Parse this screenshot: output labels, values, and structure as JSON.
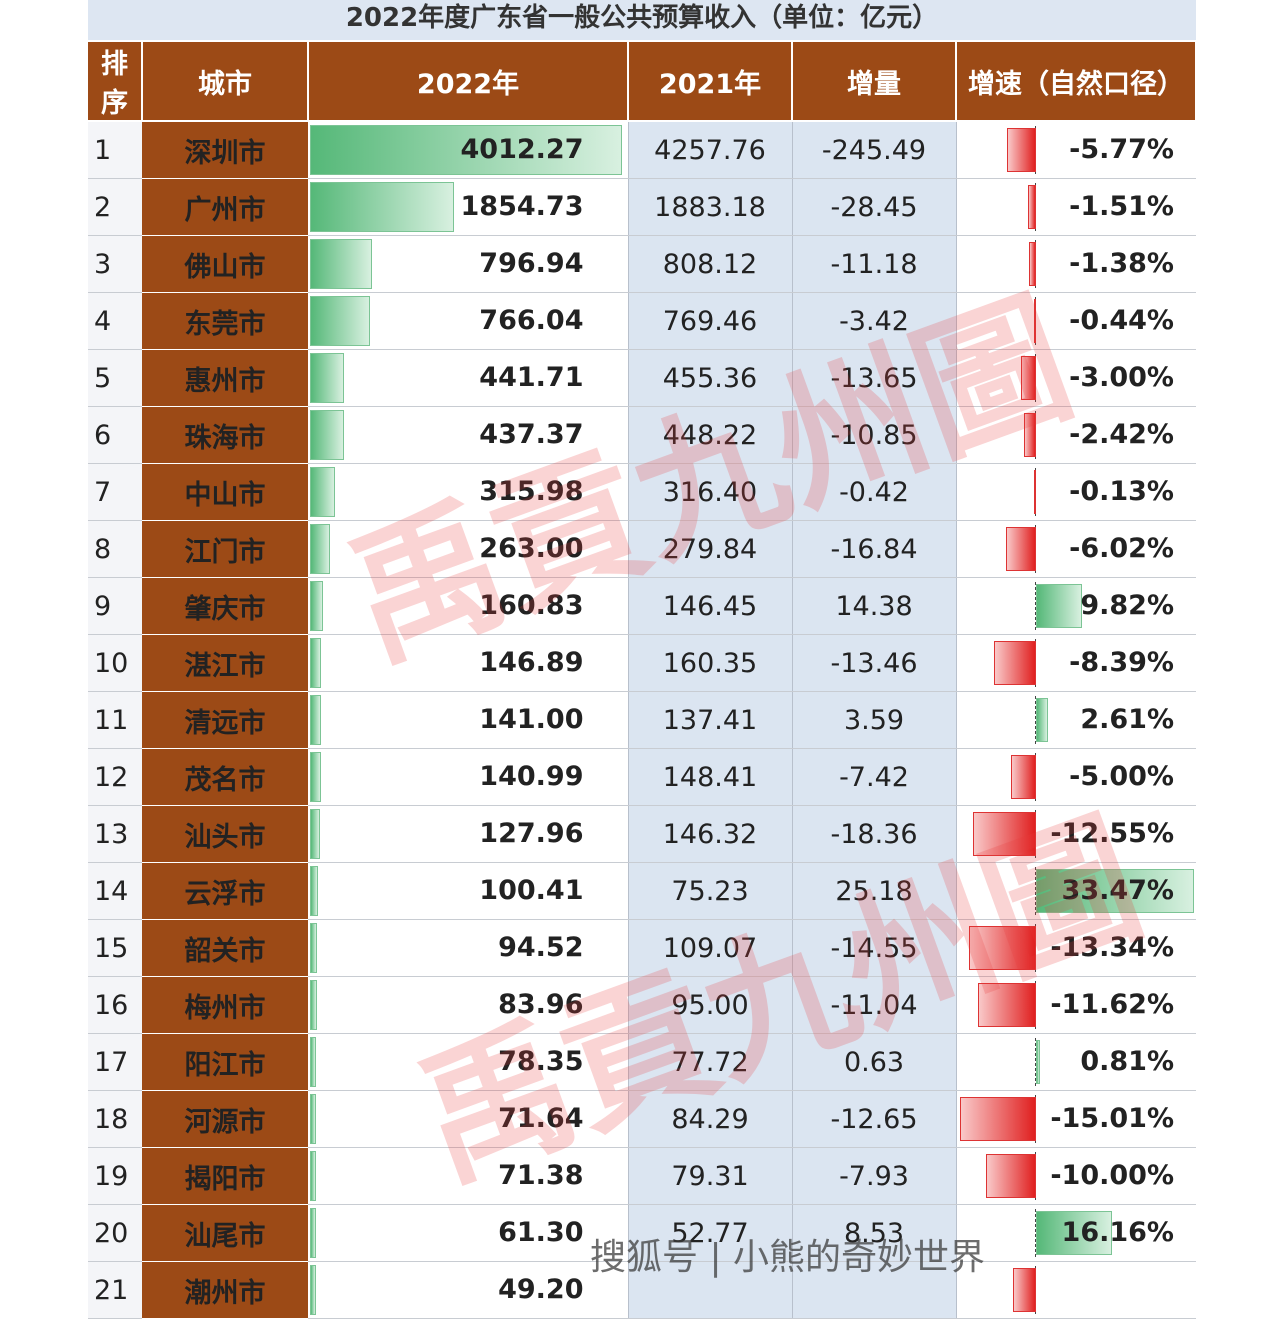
{
  "title": "2022年度广东省一般公共预算收入（单位：亿元）",
  "headers": [
    "排序",
    "城市",
    "2022年",
    "2021年",
    "增量",
    "增速（自然口径）"
  ],
  "watermark": "禹貢九州圖",
  "footer": "搜狐号 | 小熊的奇妙世界",
  "colors": {
    "header_bg": "#9c4a16",
    "bar_green": "#55b878",
    "bar_red": "#e02020",
    "light_blue": "#dbe5f1"
  },
  "chart_data": {
    "type": "table",
    "title": "2022年度广东省一般公共预算收入（单位：亿元）",
    "columns": [
      "排序",
      "城市",
      "2022年",
      "2021年",
      "增量",
      "增速（自然口径）"
    ],
    "rows": [
      {
        "rank": "1",
        "city": "深圳市",
        "v2022": "4012.27",
        "v2021": "4257.76",
        "inc": "-245.49",
        "rate": "-5.77%",
        "r": -5.77,
        "val": 4012.27
      },
      {
        "rank": "2",
        "city": "广州市",
        "v2022": "1854.73",
        "v2021": "1883.18",
        "inc": "-28.45",
        "rate": "-1.51%",
        "r": -1.51,
        "val": 1854.73
      },
      {
        "rank": "3",
        "city": "佛山市",
        "v2022": "796.94",
        "v2021": "808.12",
        "inc": "-11.18",
        "rate": "-1.38%",
        "r": -1.38,
        "val": 796.94
      },
      {
        "rank": "4",
        "city": "东莞市",
        "v2022": "766.04",
        "v2021": "769.46",
        "inc": "-3.42",
        "rate": "-0.44%",
        "r": -0.44,
        "val": 766.04
      },
      {
        "rank": "5",
        "city": "惠州市",
        "v2022": "441.71",
        "v2021": "455.36",
        "inc": "-13.65",
        "rate": "-3.00%",
        "r": -3.0,
        "val": 441.71
      },
      {
        "rank": "6",
        "city": "珠海市",
        "v2022": "437.37",
        "v2021": "448.22",
        "inc": "-10.85",
        "rate": "-2.42%",
        "r": -2.42,
        "val": 437.37
      },
      {
        "rank": "7",
        "city": "中山市",
        "v2022": "315.98",
        "v2021": "316.40",
        "inc": "-0.42",
        "rate": "-0.13%",
        "r": -0.13,
        "val": 315.98
      },
      {
        "rank": "8",
        "city": "江门市",
        "v2022": "263.00",
        "v2021": "279.84",
        "inc": "-16.84",
        "rate": "-6.02%",
        "r": -6.02,
        "val": 263.0
      },
      {
        "rank": "9",
        "city": "肇庆市",
        "v2022": "160.83",
        "v2021": "146.45",
        "inc": "14.38",
        "rate": "9.82%",
        "r": 9.82,
        "val": 160.83
      },
      {
        "rank": "10",
        "city": "湛江市",
        "v2022": "146.89",
        "v2021": "160.35",
        "inc": "-13.46",
        "rate": "-8.39%",
        "r": -8.39,
        "val": 146.89
      },
      {
        "rank": "11",
        "city": "清远市",
        "v2022": "141.00",
        "v2021": "137.41",
        "inc": "3.59",
        "rate": "2.61%",
        "r": 2.61,
        "val": 141.0
      },
      {
        "rank": "12",
        "city": "茂名市",
        "v2022": "140.99",
        "v2021": "148.41",
        "inc": "-7.42",
        "rate": "-5.00%",
        "r": -5.0,
        "val": 140.99
      },
      {
        "rank": "13",
        "city": "汕头市",
        "v2022": "127.96",
        "v2021": "146.32",
        "inc": "-18.36",
        "rate": "-12.55%",
        "r": -12.55,
        "val": 127.96
      },
      {
        "rank": "14",
        "city": "云浮市",
        "v2022": "100.41",
        "v2021": "75.23",
        "inc": "25.18",
        "rate": "33.47%",
        "r": 33.47,
        "val": 100.41
      },
      {
        "rank": "15",
        "city": "韶关市",
        "v2022": "94.52",
        "v2021": "109.07",
        "inc": "-14.55",
        "rate": "-13.34%",
        "r": -13.34,
        "val": 94.52
      },
      {
        "rank": "16",
        "city": "梅州市",
        "v2022": "83.96",
        "v2021": "95.00",
        "inc": "-11.04",
        "rate": "-11.62%",
        "r": -11.62,
        "val": 83.96
      },
      {
        "rank": "17",
        "city": "阳江市",
        "v2022": "78.35",
        "v2021": "77.72",
        "inc": "0.63",
        "rate": "0.81%",
        "r": 0.81,
        "val": 78.35
      },
      {
        "rank": "18",
        "city": "河源市",
        "v2022": "71.64",
        "v2021": "84.29",
        "inc": "-12.65",
        "rate": "-15.01%",
        "r": -15.01,
        "val": 71.64
      },
      {
        "rank": "19",
        "city": "揭阳市",
        "v2022": "71.38",
        "v2021": "79.31",
        "inc": "-7.93",
        "rate": "-10.00%",
        "r": -10.0,
        "val": 71.38
      },
      {
        "rank": "20",
        "city": "汕尾市",
        "v2022": "61.30",
        "v2021": "52.77",
        "inc": "8.53",
        "rate": "16.16%",
        "r": 16.16,
        "val": 61.3
      },
      {
        "rank": "21",
        "city": "潮州市",
        "v2022": "49.20",
        "v2021": "",
        "inc": "",
        "rate": "",
        "r": -4.6,
        "val": 49.2
      }
    ]
  }
}
